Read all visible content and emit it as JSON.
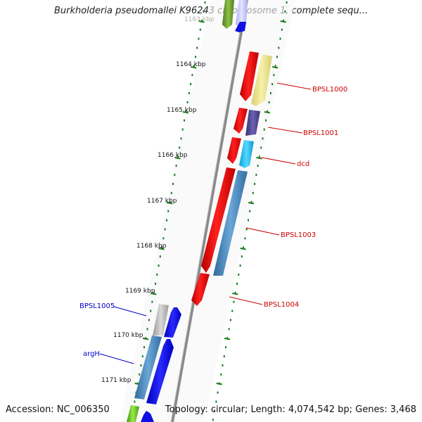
{
  "title": "Burkholderia pseudomallei K96243 chromosome 1, complete sequ...",
  "footer": {
    "accession": "Accession: NC_006350",
    "summary": "Topology: circular; Length: 4,074,542 bp; Genes: 3,468"
  },
  "colors": {
    "backbone": "#8a8a8a",
    "tick": "#1a7a1a",
    "label_red": "#cc0000",
    "label_blue": "#0000cc"
  },
  "scale_labels": [
    "1163 kbp",
    "1164 kbp",
    "1165 kbp",
    "1166 kbp",
    "1167 kbp",
    "1168 kbp",
    "1169 kbp",
    "1170 kbp",
    "1171 kbp"
  ],
  "genes": [
    {
      "name": "BPSL1000",
      "strand": "minus",
      "color": "red"
    },
    {
      "name": "BPSL1001",
      "strand": "minus",
      "color": "red"
    },
    {
      "name": "dcd",
      "strand": "minus",
      "color": "red"
    },
    {
      "name": "BPSL1003",
      "strand": "minus",
      "color": "red"
    },
    {
      "name": "BPSL1004",
      "strand": "minus",
      "color": "red"
    },
    {
      "name": "BPSL1005",
      "strand": "plus",
      "color": "blue"
    },
    {
      "name": "argH",
      "strand": "plus",
      "color": "blue"
    }
  ]
}
